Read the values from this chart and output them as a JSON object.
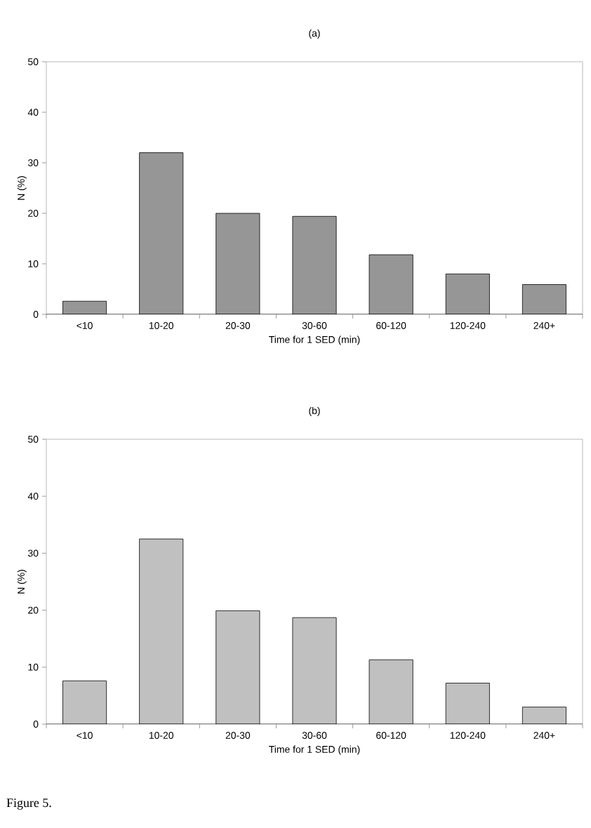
{
  "chart_data": [
    {
      "type": "bar",
      "title": "(a)",
      "xlabel": "Time for 1 SED (min)",
      "ylabel": "N (%)",
      "categories": [
        "<10",
        "10-20",
        "20-30",
        "30-60",
        "60-120",
        "120-240",
        "240+"
      ],
      "values": [
        2.6,
        32.0,
        20.0,
        19.4,
        11.8,
        8.0,
        5.9
      ],
      "color": "#969696",
      "ylim": [
        0,
        50
      ],
      "yticks": [
        0,
        10,
        20,
        30,
        40,
        50
      ]
    },
    {
      "type": "bar",
      "title": "(b)",
      "xlabel": "Time for 1 SED (min)",
      "ylabel": "N (%)",
      "categories": [
        "<10",
        "10-20",
        "20-30",
        "30-60",
        "60-120",
        "120-240",
        "240+"
      ],
      "values": [
        7.6,
        32.5,
        19.9,
        18.7,
        11.3,
        7.2,
        3.0
      ],
      "color": "#c0c0c0",
      "ylim": [
        0,
        50
      ],
      "yticks": [
        0,
        10,
        20,
        30,
        40,
        50
      ],
      "annotations": [
        "Figure 5."
      ]
    }
  ]
}
